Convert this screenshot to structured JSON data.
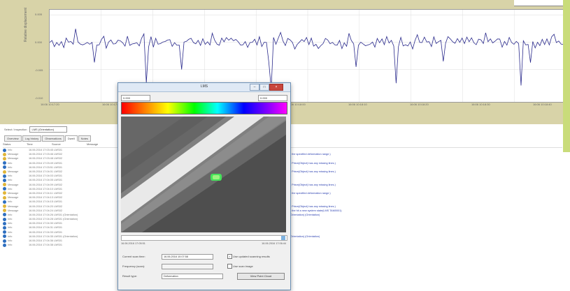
{
  "chart": {
    "y_label": "Relative displacement",
    "y_ticks": [
      "0.005",
      "0.000",
      "-0.005",
      "-0.010"
    ],
    "x_ticks": [
      "16:06 10:17:20",
      "16:06 10:17:30",
      "16:06 10:17:40",
      "16:06 10:17:50",
      "16:06 10:18:00",
      "16:06 10:18:10",
      "16:06 10:18:20",
      "16:06 10:18:30",
      "16:06 10:18:40"
    ],
    "line_color": "#2a2a8c"
  },
  "chart_data": {
    "type": "line",
    "x_count": 220,
    "ylim": [
      -0.011,
      0.006
    ],
    "series": [
      {
        "values": [
          0.0,
          0.0004,
          -0.0003,
          0.0006,
          -0.0008,
          0.0002,
          -0.0005,
          0.0003,
          -0.0002,
          0.0005
        ]
      }
    ]
  },
  "toolbar": {
    "label": "Select / inspection",
    "selected": "LMS (Orientation)"
  },
  "tabs": [
    "Overview",
    "Log history",
    "Observations",
    "Dwell",
    "Notes"
  ],
  "active_tab": 3,
  "log": {
    "columns": [
      "Status",
      "Time",
      "Source",
      "Message"
    ],
    "rows": [
      {
        "type": "Info",
        "time": "16.06.2016 17:03:45",
        "src": "LMS01",
        "msg": "",
        "icon": "info"
      },
      {
        "type": "Message",
        "time": "16.06.2016 17:03:46",
        "src": "LMS02",
        "msg": "a the specified deformation range.)",
        "icon": "warn"
      },
      {
        "type": "Message",
        "time": "16.06.2016 17:03:48",
        "src": "LMS02",
        "msg": "",
        "icon": "warn"
      },
      {
        "type": "Info",
        "time": "16.06.2016 17:03:49",
        "src": "LMS01",
        "msg": "1 Prism(Object) has any missing lines.)",
        "icon": "info"
      },
      {
        "type": "Info",
        "time": "16.06.2016 17:03:51",
        "src": "LMS01",
        "msg": "",
        "icon": "info"
      },
      {
        "type": "Message",
        "time": "16.06.2016 17:04:01",
        "src": "LMS02",
        "msg": "1 Prism(Object) has any missing lines.)",
        "icon": "warn"
      },
      {
        "type": "Info",
        "time": "16.06.2016 17:04:03",
        "src": "LMS01",
        "msg": "",
        "icon": "info"
      },
      {
        "type": "Info",
        "time": "16.06.2016 17:04:05",
        "src": "LMS01",
        "msg": "",
        "icon": "info"
      },
      {
        "type": "Message",
        "time": "16.06.2016 17:04:09",
        "src": "LMS02",
        "msg": "1 Prism(Object) has any missing lines.)",
        "icon": "warn"
      },
      {
        "type": "Info",
        "time": "16.06.2016 17:04:10",
        "src": "LMS01",
        "msg": "",
        "icon": "info"
      },
      {
        "type": "Message",
        "time": "16.06.2016 17:04:11",
        "src": "LMS02",
        "msg": "a the specified deformation range.)",
        "icon": "warn"
      },
      {
        "type": "Message",
        "time": "16.06.2016 17:04:13",
        "src": "LMS02",
        "msg": "",
        "icon": "warn"
      },
      {
        "type": "Info",
        "time": "16.06.2016 17:04:15",
        "src": "LMS01",
        "msg": "",
        "icon": "info"
      },
      {
        "type": "Message",
        "time": "16.06.2016 17:04:20",
        "src": "LMS02",
        "msg": "1 Prism(Object) has any missing lines.)",
        "icon": "warn"
      },
      {
        "type": "Message",
        "time": "16.06.2016 17:04:24",
        "src": "LMS02",
        "msg": "a the hit a new system state(LMS TAM0001)",
        "icon": "warn"
      },
      {
        "type": "Info",
        "time": "16.06.2016 17:04:26",
        "src": "LMS01 (Orientation)",
        "msg": "(Orientation)  (Orientation)",
        "icon": "info"
      },
      {
        "type": "Info",
        "time": "16.06.2016 17:04:28",
        "src": "LMS01 (Orientation)",
        "msg": "",
        "icon": "info"
      },
      {
        "type": "Info",
        "time": "16.06.2016 17:04:30",
        "src": "LMS01",
        "msg": "",
        "icon": "info"
      },
      {
        "type": "Info",
        "time": "16.06.2016 17:04:31",
        "src": "LMS01",
        "msg": "",
        "icon": "info"
      },
      {
        "type": "Info",
        "time": "16.06.2016 17:04:33",
        "src": "LMS01",
        "msg": "",
        "icon": "info"
      },
      {
        "type": "Info",
        "time": "16.06.2016 17:04:35",
        "src": "LMS01 (Orientation)",
        "msg": "(Orientation)  (Orientation)",
        "icon": "info"
      },
      {
        "type": "Info",
        "time": "16.06.2016 17:04:36",
        "src": "LMS01",
        "msg": "",
        "icon": "info"
      },
      {
        "type": "Info",
        "time": "16.06.2016 17:04:38",
        "src": "LMS01",
        "msg": "",
        "icon": "info"
      }
    ]
  },
  "dialog": {
    "title": "LMS",
    "min_value": "0.000",
    "max_value": "0.000",
    "time_start": "16.06.2016 17:05:51",
    "time_end": "16.06.2016 17:06:44",
    "current_label": "Current scan time:",
    "current_value": "16.06.2016 10:07:58",
    "checkbox1": "Use updated scanning results",
    "frequency_label": "Frequency (scan):",
    "checkbox2": "Use scan image",
    "result_label": "Result type:",
    "result_value": "Deformation",
    "button": "View Point Cloud"
  },
  "colors": {
    "panel": "#d8d3a8",
    "green": "#c9dc7a",
    "accent": "#2a3fb0"
  }
}
